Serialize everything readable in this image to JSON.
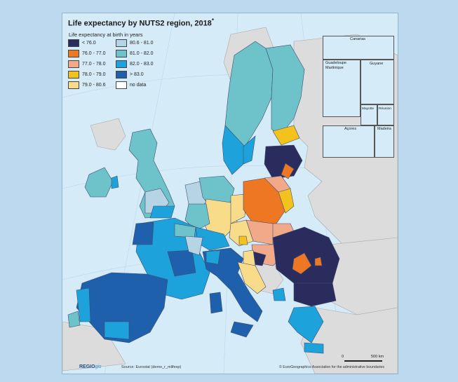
{
  "map": {
    "title": "Life expectancy by NUTS2 region, 2018",
    "title_mark": "*",
    "subtitle": "Life expectancy at birth in years",
    "legend": [
      {
        "label": "< 76.0",
        "color": "#2a2c5d"
      },
      {
        "label": "76.0 - 77.0",
        "color": "#ee7724"
      },
      {
        "label": "77.0 - 78.0",
        "color": "#f2a98a"
      },
      {
        "label": "78.0 - 79.0",
        "color": "#f4c21c"
      },
      {
        "label": "79.0 - 80.6",
        "color": "#f9dc8a"
      },
      {
        "label": "80.6 - 81.0",
        "color": "#b6d4e4"
      },
      {
        "label": "81.0 - 82.0",
        "color": "#6ec2c9"
      },
      {
        "label": "82.0 - 83.0",
        "color": "#1ea2db"
      },
      {
        "label": "> 83.0",
        "color": "#1f60ad"
      },
      {
        "label": "no data",
        "color": "#ffffff"
      }
    ],
    "insets": {
      "canarias": "Canarias",
      "guadeloupe": "Guadeloupe",
      "martinique": "Martinique",
      "guyane": "Guyane",
      "mayotte": "Mayotte",
      "reunion": "Réunion",
      "acores": "Açores",
      "madeira": "Madeira"
    },
    "scale": {
      "start": "0",
      "end": "500 km"
    },
    "footer": {
      "logo_main": "REGIO",
      "logo_sub": "gis",
      "source": "Source: Eurostat (demo_r_mlifexp)",
      "copyright": "© EuroGeographics Association for the administrative boundaries"
    },
    "colors": {
      "sea": "#d6ebf8",
      "non_eu": "#dcdcdc",
      "border": "#3e4e6e"
    }
  }
}
